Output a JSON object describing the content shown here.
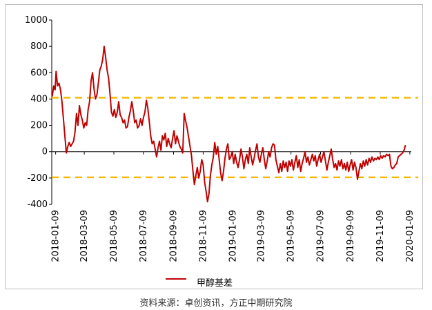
{
  "chart_data": {
    "type": "line",
    "series": [
      {
        "name": "甲醇基差",
        "color": "#c00000",
        "points": [
          [
            "2018-01-02",
            420
          ],
          [
            "2018-01-05",
            500
          ],
          [
            "2018-01-08",
            470
          ],
          [
            "2018-01-10",
            610
          ],
          [
            "2018-01-13",
            500
          ],
          [
            "2018-01-16",
            520
          ],
          [
            "2018-01-19",
            470
          ],
          [
            "2018-01-22",
            380
          ],
          [
            "2018-01-25",
            250
          ],
          [
            "2018-01-28",
            120
          ],
          [
            "2018-01-31",
            -10
          ],
          [
            "2018-02-03",
            40
          ],
          [
            "2018-02-06",
            70
          ],
          [
            "2018-02-09",
            40
          ],
          [
            "2018-02-12",
            60
          ],
          [
            "2018-02-15",
            80
          ],
          [
            "2018-02-18",
            150
          ],
          [
            "2018-02-21",
            290
          ],
          [
            "2018-02-24",
            200
          ],
          [
            "2018-02-27",
            350
          ],
          [
            "2018-03-02",
            280
          ],
          [
            "2018-03-05",
            240
          ],
          [
            "2018-03-08",
            180
          ],
          [
            "2018-03-11",
            220
          ],
          [
            "2018-03-14",
            200
          ],
          [
            "2018-03-17",
            320
          ],
          [
            "2018-03-20",
            380
          ],
          [
            "2018-03-23",
            540
          ],
          [
            "2018-03-26",
            600
          ],
          [
            "2018-03-29",
            480
          ],
          [
            "2018-04-01",
            400
          ],
          [
            "2018-04-04",
            430
          ],
          [
            "2018-04-07",
            520
          ],
          [
            "2018-04-10",
            620
          ],
          [
            "2018-04-13",
            650
          ],
          [
            "2018-04-16",
            700
          ],
          [
            "2018-04-19",
            800
          ],
          [
            "2018-04-22",
            720
          ],
          [
            "2018-04-25",
            620
          ],
          [
            "2018-04-28",
            560
          ],
          [
            "2018-05-01",
            440
          ],
          [
            "2018-05-04",
            300
          ],
          [
            "2018-05-07",
            270
          ],
          [
            "2018-05-10",
            320
          ],
          [
            "2018-05-13",
            260
          ],
          [
            "2018-05-16",
            300
          ],
          [
            "2018-05-19",
            380
          ],
          [
            "2018-05-22",
            280
          ],
          [
            "2018-05-25",
            260
          ],
          [
            "2018-05-28",
            220
          ],
          [
            "2018-05-31",
            240
          ],
          [
            "2018-06-03",
            180
          ],
          [
            "2018-06-06",
            190
          ],
          [
            "2018-06-09",
            260
          ],
          [
            "2018-06-12",
            310
          ],
          [
            "2018-06-15",
            380
          ],
          [
            "2018-06-18",
            310
          ],
          [
            "2018-06-21",
            220
          ],
          [
            "2018-06-24",
            240
          ],
          [
            "2018-06-27",
            180
          ],
          [
            "2018-06-30",
            200
          ],
          [
            "2018-07-03",
            250
          ],
          [
            "2018-07-06",
            200
          ],
          [
            "2018-07-09",
            260
          ],
          [
            "2018-07-12",
            300
          ],
          [
            "2018-07-15",
            390
          ],
          [
            "2018-07-18",
            330
          ],
          [
            "2018-07-21",
            230
          ],
          [
            "2018-07-24",
            120
          ],
          [
            "2018-07-27",
            60
          ],
          [
            "2018-07-30",
            80
          ],
          [
            "2018-08-02",
            20
          ],
          [
            "2018-08-05",
            -40
          ],
          [
            "2018-08-08",
            30
          ],
          [
            "2018-08-11",
            80
          ],
          [
            "2018-08-14",
            10
          ],
          [
            "2018-08-17",
            120
          ],
          [
            "2018-08-20",
            90
          ],
          [
            "2018-08-23",
            140
          ],
          [
            "2018-08-26",
            40
          ],
          [
            "2018-08-29",
            100
          ],
          [
            "2018-09-01",
            60
          ],
          [
            "2018-09-04",
            30
          ],
          [
            "2018-09-07",
            100
          ],
          [
            "2018-09-10",
            160
          ],
          [
            "2018-09-13",
            60
          ],
          [
            "2018-09-16",
            120
          ],
          [
            "2018-09-19",
            80
          ],
          [
            "2018-09-22",
            40
          ],
          [
            "2018-09-25",
            20
          ],
          [
            "2018-09-28",
            -10
          ],
          [
            "2018-10-01",
            290
          ],
          [
            "2018-10-04",
            230
          ],
          [
            "2018-10-07",
            180
          ],
          [
            "2018-10-10",
            110
          ],
          [
            "2018-10-13",
            40
          ],
          [
            "2018-10-16",
            -30
          ],
          [
            "2018-10-19",
            -150
          ],
          [
            "2018-10-22",
            -250
          ],
          [
            "2018-10-25",
            -180
          ],
          [
            "2018-10-28",
            -120
          ],
          [
            "2018-10-31",
            -200
          ],
          [
            "2018-11-03",
            -150
          ],
          [
            "2018-11-06",
            -60
          ],
          [
            "2018-11-09",
            -100
          ],
          [
            "2018-11-12",
            -230
          ],
          [
            "2018-11-15",
            -300
          ],
          [
            "2018-11-18",
            -380
          ],
          [
            "2018-11-21",
            -320
          ],
          [
            "2018-11-24",
            -180
          ],
          [
            "2018-11-27",
            -100
          ],
          [
            "2018-11-30",
            -40
          ],
          [
            "2018-12-03",
            70
          ],
          [
            "2018-12-06",
            -20
          ],
          [
            "2018-12-09",
            40
          ],
          [
            "2018-12-12",
            -60
          ],
          [
            "2018-12-15",
            -160
          ],
          [
            "2018-12-18",
            -220
          ],
          [
            "2018-12-21",
            -150
          ],
          [
            "2018-12-24",
            -50
          ],
          [
            "2018-12-27",
            20
          ],
          [
            "2018-12-30",
            60
          ],
          [
            "2019-01-02",
            -60
          ],
          [
            "2019-01-05",
            -40
          ],
          [
            "2019-01-08",
            0
          ],
          [
            "2019-01-11",
            -90
          ],
          [
            "2019-01-14",
            -20
          ],
          [
            "2019-01-17",
            -80
          ],
          [
            "2019-01-20",
            -120
          ],
          [
            "2019-01-23",
            -60
          ],
          [
            "2019-01-26",
            20
          ],
          [
            "2019-01-29",
            -40
          ],
          [
            "2019-02-01",
            -130
          ],
          [
            "2019-02-04",
            -60
          ],
          [
            "2019-02-07",
            -20
          ],
          [
            "2019-02-10",
            -90
          ],
          [
            "2019-02-13",
            30
          ],
          [
            "2019-02-16",
            -40
          ],
          [
            "2019-02-19",
            -100
          ],
          [
            "2019-02-22",
            -50
          ],
          [
            "2019-02-25",
            10
          ],
          [
            "2019-02-28",
            60
          ],
          [
            "2019-03-03",
            -40
          ],
          [
            "2019-03-06",
            -80
          ],
          [
            "2019-03-09",
            -20
          ],
          [
            "2019-03-12",
            30
          ],
          [
            "2019-03-15",
            -60
          ],
          [
            "2019-03-18",
            -130
          ],
          [
            "2019-03-21",
            -70
          ],
          [
            "2019-03-24",
            0
          ],
          [
            "2019-03-27",
            -40
          ],
          [
            "2019-03-30",
            30
          ],
          [
            "2019-04-02",
            60
          ],
          [
            "2019-04-05",
            50
          ],
          [
            "2019-04-08",
            -60
          ],
          [
            "2019-04-11",
            -110
          ],
          [
            "2019-04-14",
            -160
          ],
          [
            "2019-04-17",
            -90
          ],
          [
            "2019-04-20",
            -150
          ],
          [
            "2019-04-23",
            -70
          ],
          [
            "2019-04-26",
            -120
          ],
          [
            "2019-04-29",
            -80
          ],
          [
            "2019-05-02",
            -150
          ],
          [
            "2019-05-05",
            -70
          ],
          [
            "2019-05-08",
            -110
          ],
          [
            "2019-05-11",
            -60
          ],
          [
            "2019-05-14",
            -140
          ],
          [
            "2019-05-17",
            -80
          ],
          [
            "2019-05-20",
            -30
          ],
          [
            "2019-05-23",
            -120
          ],
          [
            "2019-05-26",
            -60
          ],
          [
            "2019-05-29",
            -150
          ],
          [
            "2019-06-01",
            -90
          ],
          [
            "2019-06-04",
            -50
          ],
          [
            "2019-06-07",
            0
          ],
          [
            "2019-06-10",
            -80
          ],
          [
            "2019-06-13",
            -40
          ],
          [
            "2019-06-16",
            -100
          ],
          [
            "2019-06-19",
            -60
          ],
          [
            "2019-06-22",
            -20
          ],
          [
            "2019-06-25",
            -70
          ],
          [
            "2019-06-28",
            -30
          ],
          [
            "2019-07-01",
            -110
          ],
          [
            "2019-07-04",
            -60
          ],
          [
            "2019-07-07",
            -20
          ],
          [
            "2019-07-10",
            -80
          ],
          [
            "2019-07-13",
            -40
          ],
          [
            "2019-07-16",
            0
          ],
          [
            "2019-07-19",
            -70
          ],
          [
            "2019-07-22",
            -140
          ],
          [
            "2019-07-25",
            -80
          ],
          [
            "2019-07-28",
            -30
          ],
          [
            "2019-07-31",
            20
          ],
          [
            "2019-08-03",
            -60
          ],
          [
            "2019-08-06",
            -120
          ],
          [
            "2019-08-09",
            -90
          ],
          [
            "2019-08-12",
            -140
          ],
          [
            "2019-08-15",
            -70
          ],
          [
            "2019-08-18",
            -110
          ],
          [
            "2019-08-21",
            -60
          ],
          [
            "2019-08-24",
            -130
          ],
          [
            "2019-08-27",
            -90
          ],
          [
            "2019-08-30",
            -140
          ],
          [
            "2019-09-02",
            -80
          ],
          [
            "2019-09-05",
            -150
          ],
          [
            "2019-09-08",
            -100
          ],
          [
            "2019-09-11",
            -60
          ],
          [
            "2019-09-14",
            -140
          ],
          [
            "2019-09-17",
            -80
          ],
          [
            "2019-09-20",
            -120
          ],
          [
            "2019-09-23",
            -210
          ],
          [
            "2019-09-26",
            -150
          ],
          [
            "2019-09-29",
            -90
          ],
          [
            "2019-10-02",
            -130
          ],
          [
            "2019-10-05",
            -70
          ],
          [
            "2019-10-08",
            -110
          ],
          [
            "2019-10-11",
            -60
          ],
          [
            "2019-10-14",
            -100
          ],
          [
            "2019-10-17",
            -50
          ],
          [
            "2019-10-20",
            -80
          ],
          [
            "2019-10-23",
            -40
          ],
          [
            "2019-10-26",
            -70
          ],
          [
            "2019-10-29",
            -50
          ],
          [
            "2019-11-01",
            -60
          ],
          [
            "2019-11-04",
            -40
          ],
          [
            "2019-11-07",
            -60
          ],
          [
            "2019-11-10",
            -30
          ],
          [
            "2019-11-13",
            -50
          ],
          [
            "2019-11-16",
            -30
          ],
          [
            "2019-11-19",
            -40
          ],
          [
            "2019-11-22",
            -20
          ],
          [
            "2019-11-25",
            -30
          ],
          [
            "2019-11-28",
            -20
          ],
          [
            "2019-12-01",
            -110
          ],
          [
            "2019-12-04",
            -130
          ],
          [
            "2019-12-07",
            -120
          ],
          [
            "2019-12-10",
            -100
          ],
          [
            "2019-12-13",
            -90
          ],
          [
            "2019-12-16",
            -40
          ],
          [
            "2019-12-19",
            -30
          ],
          [
            "2019-12-22",
            -20
          ],
          [
            "2019-12-25",
            -10
          ],
          [
            "2019-12-28",
            10
          ],
          [
            "2019-12-31",
            50
          ]
        ]
      }
    ],
    "reference_lines": [
      {
        "y": 410,
        "color": "#f5b800"
      },
      {
        "y": -195,
        "color": "#f5b800"
      }
    ],
    "x_ticks": [
      "2018-01-09",
      "2018-03-09",
      "2018-05-09",
      "2018-07-09",
      "2018-09-09",
      "2018-11-09",
      "2019-01-09",
      "2019-03-09",
      "2019-05-09",
      "2019-07-09",
      "2019-09-09",
      "2019-11-09",
      "2020-01-09"
    ],
    "x_range": [
      "2018-01-01",
      "2020-01-12"
    ],
    "y_ticks": [
      1000,
      800,
      600,
      400,
      200,
      0,
      -200,
      -400
    ],
    "ylim": [
      -400,
      1000
    ],
    "grid": false,
    "legend_position": "bottom",
    "legend": "甲醇基差"
  },
  "footer": {
    "source": "资料来源：卓创资讯，方正中期研究院"
  }
}
